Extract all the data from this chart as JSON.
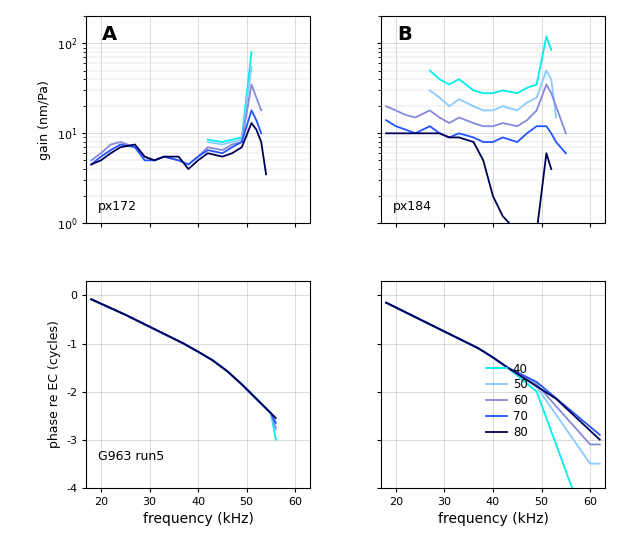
{
  "colors": [
    "#00EEEE",
    "#88CCFF",
    "#8888DD",
    "#2255FF",
    "#000055"
  ],
  "legend_labels": [
    "40",
    "50",
    "60",
    "70",
    "80"
  ],
  "panel_A_label": "px172",
  "panel_B_label": "px184",
  "panel_C_label": "G963 run5",
  "panel_A_letter": "A",
  "panel_B_letter": "B",
  "xlabel": "frequency (kHz)",
  "ylabel_gain": "gain (nm/Pa)",
  "ylabel_phase": "phase re EC (cycles)",
  "xlim": [
    17,
    63
  ],
  "xticks": [
    20,
    30,
    40,
    50,
    60
  ],
  "bg_color": "#ffffff",
  "grid_color": "#cccccc"
}
